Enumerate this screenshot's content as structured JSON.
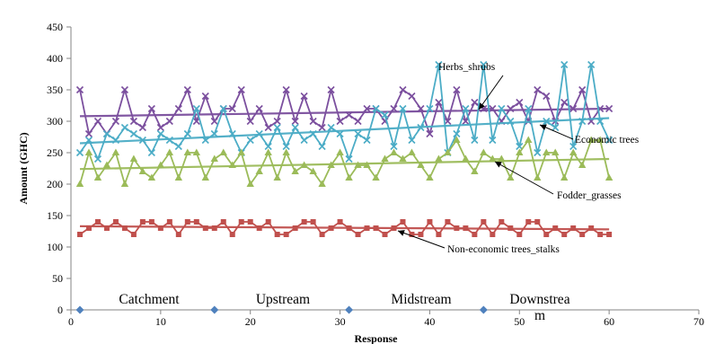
{
  "chart_data": {
    "type": "line",
    "xlabel": "Response",
    "ylabel": "Amount  (GHC)",
    "xlim": [
      0,
      70
    ],
    "ylim": [
      0,
      450
    ],
    "xticks": [
      0,
      10,
      20,
      30,
      40,
      50,
      60,
      70
    ],
    "yticks": [
      0,
      50,
      100,
      150,
      200,
      250,
      300,
      350,
      400,
      450
    ],
    "grid": false,
    "legend": "none (series named by arrow annotations)",
    "x": [
      1,
      2,
      3,
      4,
      5,
      6,
      7,
      8,
      9,
      10,
      11,
      12,
      13,
      14,
      15,
      16,
      17,
      18,
      19,
      20,
      21,
      22,
      23,
      24,
      25,
      26,
      27,
      28,
      29,
      30,
      31,
      32,
      33,
      34,
      35,
      36,
      37,
      38,
      39,
      40,
      41,
      42,
      43,
      44,
      45,
      46,
      47,
      48,
      49,
      50,
      51,
      52,
      53,
      54,
      55,
      56,
      57,
      58,
      59,
      60
    ],
    "series": [
      {
        "name": "Herbs_shrubs",
        "color": "#7B4F9E",
        "marker": "x",
        "values": [
          350,
          280,
          300,
          280,
          300,
          350,
          300,
          290,
          320,
          290,
          300,
          320,
          350,
          300,
          340,
          300,
          320,
          320,
          350,
          300,
          320,
          290,
          300,
          350,
          300,
          340,
          300,
          290,
          350,
          300,
          310,
          300,
          320,
          320,
          300,
          320,
          350,
          340,
          320,
          280,
          330,
          300,
          350,
          300,
          330,
          320,
          320,
          300,
          320,
          330,
          300,
          350,
          340,
          300,
          330,
          320,
          350,
          300,
          320,
          320
        ],
        "trend": [
          308,
          320
        ]
      },
      {
        "name": "Economic trees",
        "color": "#4BACC6",
        "marker": "x",
        "values": [
          250,
          270,
          240,
          280,
          270,
          290,
          280,
          270,
          250,
          280,
          270,
          260,
          280,
          320,
          270,
          280,
          320,
          280,
          250,
          270,
          280,
          260,
          290,
          260,
          290,
          270,
          280,
          260,
          290,
          280,
          240,
          280,
          270,
          320,
          310,
          260,
          320,
          270,
          290,
          320,
          390,
          250,
          280,
          320,
          270,
          390,
          270,
          320,
          300,
          260,
          320,
          250,
          300,
          290,
          390,
          260,
          300,
          390,
          300,
          270
        ],
        "trend": [
          265,
          305
        ]
      },
      {
        "name": "Fodder_grasses",
        "color": "#9BBB59",
        "marker": "triangle",
        "values": [
          200,
          250,
          210,
          230,
          250,
          200,
          240,
          220,
          210,
          230,
          250,
          210,
          250,
          250,
          210,
          240,
          250,
          230,
          250,
          200,
          220,
          250,
          210,
          250,
          220,
          230,
          220,
          200,
          230,
          250,
          210,
          230,
          230,
          210,
          240,
          250,
          240,
          250,
          230,
          210,
          240,
          250,
          270,
          240,
          220,
          250,
          240,
          240,
          210,
          250,
          270,
          210,
          250,
          250,
          210,
          250,
          230,
          270,
          270,
          210
        ],
        "trend": [
          224,
          240
        ]
      },
      {
        "name": "Non-economic trees_stalks",
        "color": "#C0504D",
        "marker": "square",
        "values": [
          120,
          130,
          140,
          130,
          140,
          130,
          120,
          140,
          140,
          130,
          140,
          120,
          140,
          140,
          130,
          130,
          140,
          120,
          140,
          140,
          130,
          140,
          120,
          120,
          130,
          140,
          140,
          120,
          130,
          140,
          130,
          120,
          130,
          130,
          120,
          130,
          140,
          120,
          120,
          140,
          120,
          140,
          130,
          130,
          120,
          140,
          120,
          140,
          130,
          120,
          140,
          140,
          120,
          130,
          120,
          130,
          120,
          130,
          120,
          120
        ],
        "trend": [
          133,
          128
        ]
      }
    ],
    "annotations": [
      {
        "text": "Herbs_shrubs",
        "target_series": "Herbs_shrubs"
      },
      {
        "text": "Economic trees",
        "target_series": "Economic trees"
      },
      {
        "text": "Fodder_grasses",
        "target_series": "Fodder_grasses"
      },
      {
        "text": "Non-economic trees_stalks",
        "target_series": "Non-economic trees_stalks"
      }
    ],
    "region_labels": [
      {
        "text": "Catchment",
        "x": 1
      },
      {
        "text": "Upstream",
        "x": 16
      },
      {
        "text": "Midstream",
        "x": 31
      },
      {
        "text": "Downstrea",
        "x": 46
      }
    ],
    "region_label_overflow": "m",
    "region_marker_color": "#4F81BD"
  }
}
